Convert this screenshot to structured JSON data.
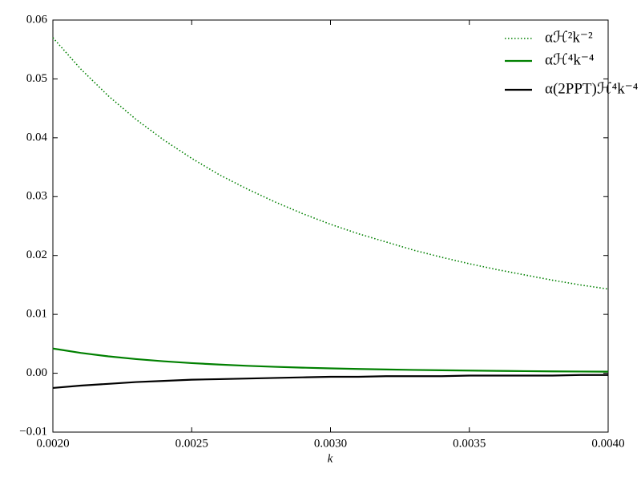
{
  "chart_data": {
    "type": "line",
    "x_label": "k",
    "x": [
      0.002,
      0.0021,
      0.0022,
      0.0023,
      0.0024,
      0.0025,
      0.0026,
      0.0027,
      0.0028,
      0.0029,
      0.003,
      0.0031,
      0.0032,
      0.0033,
      0.0034,
      0.0035,
      0.0036,
      0.0037,
      0.0038,
      0.0039,
      0.004
    ],
    "series": [
      {
        "name": "αℋ²k⁻²",
        "color": "#008000",
        "dash": "dotted",
        "values": [
          0.057,
          0.0517,
          0.0471,
          0.0431,
          0.0396,
          0.0365,
          0.0337,
          0.0313,
          0.0291,
          0.0271,
          0.0253,
          0.0237,
          0.0223,
          0.0209,
          0.0197,
          0.0186,
          0.0176,
          0.0167,
          0.0158,
          0.015,
          0.0143
        ]
      },
      {
        "name": "αℋ⁴k⁻⁴",
        "color": "#008000",
        "dash": "solid",
        "values": [
          0.0042,
          0.00346,
          0.00287,
          0.0024,
          0.00203,
          0.00172,
          0.00147,
          0.00126,
          0.00109,
          0.00095,
          0.00083,
          0.00072,
          0.00064,
          0.00056,
          0.0005,
          0.00045,
          0.0004,
          0.00036,
          0.00032,
          0.00029,
          0.00026
        ]
      },
      {
        "name": "α(2PPT)ℋ⁴k⁻⁴",
        "color": "#000000",
        "dash": "solid",
        "values": [
          -0.0025,
          -0.0021,
          -0.0018,
          -0.0015,
          -0.0013,
          -0.0011,
          -0.001,
          -0.0009,
          -0.0008,
          -0.0007,
          -0.0006,
          -0.0006,
          -0.0005,
          -0.0005,
          -0.0005,
          -0.0004,
          -0.0004,
          -0.0004,
          -0.0004,
          -0.0003,
          -0.0003
        ]
      }
    ],
    "xlim": [
      0.002,
      0.004
    ],
    "xticks": [
      {
        "value": 0.002,
        "label": "0.0020"
      },
      {
        "value": 0.0025,
        "label": "0.0025"
      },
      {
        "value": 0.003,
        "label": "0.0030"
      },
      {
        "value": 0.0035,
        "label": "0.0035"
      },
      {
        "value": 0.004,
        "label": "0.0040"
      }
    ],
    "ylim": [
      -0.01,
      0.06
    ],
    "yticks": [
      {
        "value": -0.01,
        "label": "−0.01"
      },
      {
        "value": 0,
        "label": "0.00"
      },
      0.01,
      0.02,
      0.03,
      0.04,
      0.05,
      0.06
    ],
    "grid": false,
    "legend": "upper right"
  }
}
